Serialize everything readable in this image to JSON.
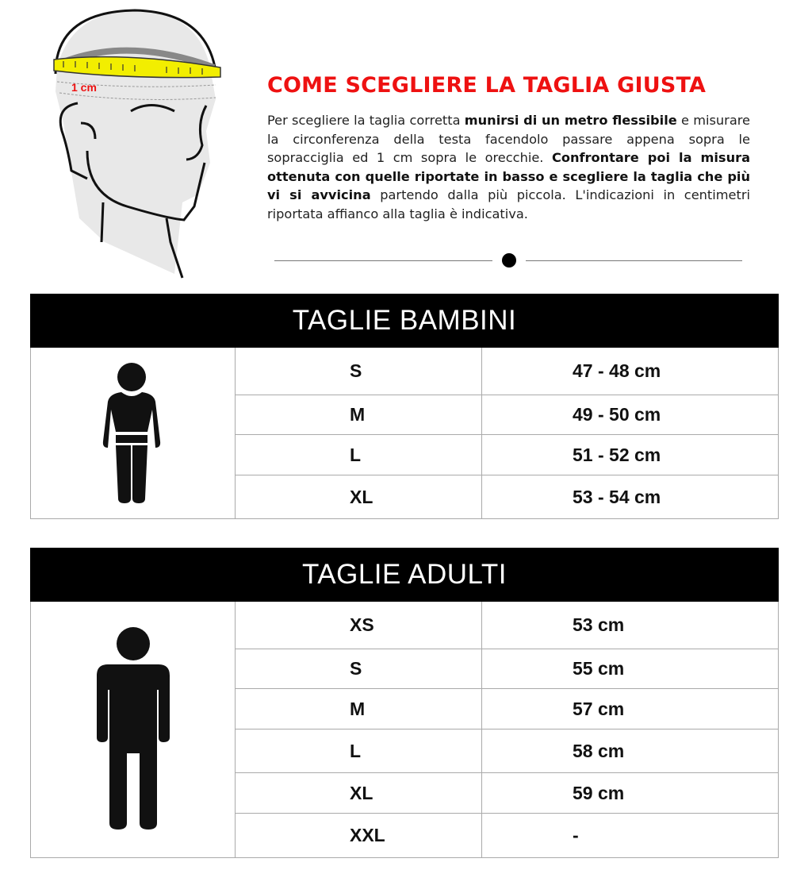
{
  "header": {
    "illustration_label": "1 cm",
    "title": "COME SCEGLIERE LA TAGLIA GIUSTA",
    "paragraph": [
      {
        "text": "Per scegliere la taglia corretta ",
        "bold": false
      },
      {
        "text": "munirsi di un metro flessibile",
        "bold": true
      },
      {
        "text": " e misurare la circonferenza della testa facendolo passare appena sopra le sopracciglia ed 1 cm sopra le orecchie. ",
        "bold": false
      },
      {
        "text": "Confrontare poi la misura ottenuta con quelle riportate in basso e scegliere la taglia che più vi si avvicina",
        "bold": true
      },
      {
        "text": " partendo dalla più piccola. L'indicazioni in centimetri riportata affianco alla taglia è indicativa.",
        "bold": false
      }
    ]
  },
  "colors": {
    "title": "#ee1111",
    "tape": "#f2ee00",
    "header_bg": "#000000"
  },
  "kids": {
    "title": "TAGLIE BAMBINI",
    "icon": "child-figure-icon",
    "rows": [
      {
        "size": "S",
        "cm": "47 - 48 cm"
      },
      {
        "size": "M",
        "cm": "49 - 50 cm"
      },
      {
        "size": "L",
        "cm": "51 - 52 cm"
      },
      {
        "size": "XL",
        "cm": "53 - 54 cm"
      }
    ]
  },
  "adults": {
    "title": "TAGLIE ADULTI",
    "icon": "adult-figure-icon",
    "rows": [
      {
        "size": "XS",
        "cm": "53 cm"
      },
      {
        "size": "S",
        "cm": "55 cm"
      },
      {
        "size": "M",
        "cm": "57 cm"
      },
      {
        "size": "L",
        "cm": "58 cm"
      },
      {
        "size": "XL",
        "cm": "59 cm"
      },
      {
        "size": "XXL",
        "cm": "-"
      }
    ]
  }
}
